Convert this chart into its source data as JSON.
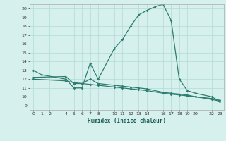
{
  "title": "",
  "xlabel": "Humidex (Indice chaleur)",
  "bg_color": "#d6f0ee",
  "line_color": "#2e7d6e",
  "grid_color": "#b8ddd9",
  "xlim": [
    -0.5,
    23.5
  ],
  "ylim": [
    8.5,
    20.5
  ],
  "xticks": [
    0,
    1,
    2,
    4,
    5,
    6,
    7,
    8,
    10,
    11,
    12,
    13,
    14,
    16,
    17,
    18,
    19,
    20,
    22,
    23
  ],
  "yticks": [
    9,
    10,
    11,
    12,
    13,
    14,
    15,
    16,
    17,
    18,
    19,
    20
  ],
  "curve1_x": [
    0,
    1,
    4,
    5,
    6,
    7,
    8,
    10,
    11,
    12,
    13,
    14,
    15,
    16,
    17,
    18,
    19,
    20,
    22,
    23
  ],
  "curve1_y": [
    13.0,
    12.5,
    12.0,
    11.0,
    11.0,
    13.8,
    12.0,
    15.5,
    16.5,
    18.0,
    19.3,
    19.8,
    20.2,
    20.5,
    18.7,
    12.0,
    10.7,
    10.4,
    10.0,
    9.5
  ],
  "curve2_x": [
    0,
    4,
    5,
    6,
    7,
    8,
    10,
    11,
    12,
    13,
    14,
    16,
    17,
    18,
    19,
    20,
    22,
    23
  ],
  "curve2_y": [
    12.2,
    12.3,
    11.5,
    11.5,
    12.0,
    11.5,
    11.3,
    11.2,
    11.1,
    11.0,
    10.9,
    10.5,
    10.4,
    10.3,
    10.2,
    10.0,
    9.8,
    9.6
  ],
  "curve3_x": [
    0,
    4,
    5,
    6,
    7,
    8,
    10,
    11,
    12,
    13,
    14,
    16,
    17,
    18,
    19,
    20,
    22,
    23
  ],
  "curve3_y": [
    12.0,
    11.8,
    11.6,
    11.5,
    11.4,
    11.3,
    11.1,
    11.0,
    10.9,
    10.8,
    10.7,
    10.4,
    10.3,
    10.2,
    10.1,
    10.0,
    9.7,
    9.5
  ]
}
